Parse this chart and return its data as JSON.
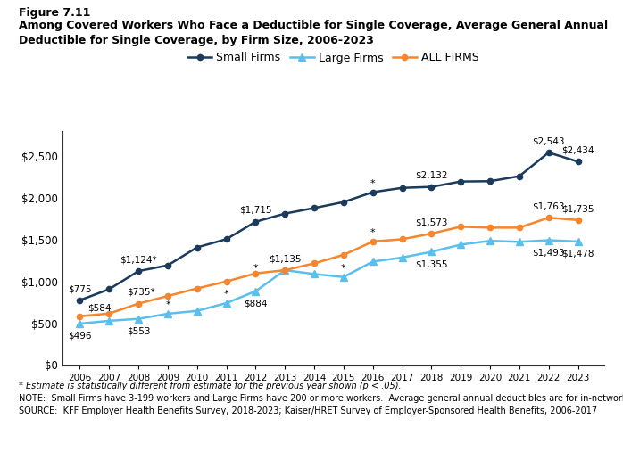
{
  "years": [
    2006,
    2007,
    2008,
    2009,
    2010,
    2011,
    2012,
    2013,
    2014,
    2015,
    2016,
    2017,
    2018,
    2019,
    2020,
    2021,
    2022,
    2023
  ],
  "small_firms": [
    775,
    908,
    1124,
    1193,
    1408,
    1506,
    1715,
    1812,
    1879,
    1950,
    2069,
    2120,
    2132,
    2196,
    2200,
    2260,
    2543,
    2434
  ],
  "large_firms": [
    496,
    529,
    553,
    614,
    648,
    741,
    884,
    1135,
    1089,
    1053,
    1238,
    1286,
    1355,
    1441,
    1486,
    1474,
    1493,
    1478
  ],
  "all_firms": [
    584,
    616,
    735,
    826,
    917,
    1000,
    1097,
    1135,
    1217,
    1318,
    1478,
    1505,
    1573,
    1655,
    1644,
    1644,
    1763,
    1735
  ],
  "small_color": "#1b3a5c",
  "large_color": "#5bbfed",
  "all_color": "#f5862e",
  "small_label": "Small Firms",
  "large_label": "Large Firms",
  "all_label": "ALL FIRMS",
  "title_line1": "Figure 7.11",
  "title_line2": "Among Covered Workers Who Face a Deductible for Single Coverage, Average General Annual\nDeductible for Single Coverage, by Firm Size, 2006-2023",
  "footnote1": "* Estimate is statistically different from estimate for the previous year shown (p < .05).",
  "footnote2": "NOTE:  Small Firms have 3-199 workers and Large Firms have 200 or more workers.  Average general annual deductibles are for in-network providers.",
  "footnote3": "SOURCE:  KFF Employer Health Benefits Survey, 2018-2023; Kaiser/HRET Survey of Employer-Sponsored Health Benefits, 2006-2017",
  "ylim": [
    0,
    2800
  ],
  "yticks": [
    0,
    500,
    1000,
    1500,
    2000,
    2500
  ]
}
